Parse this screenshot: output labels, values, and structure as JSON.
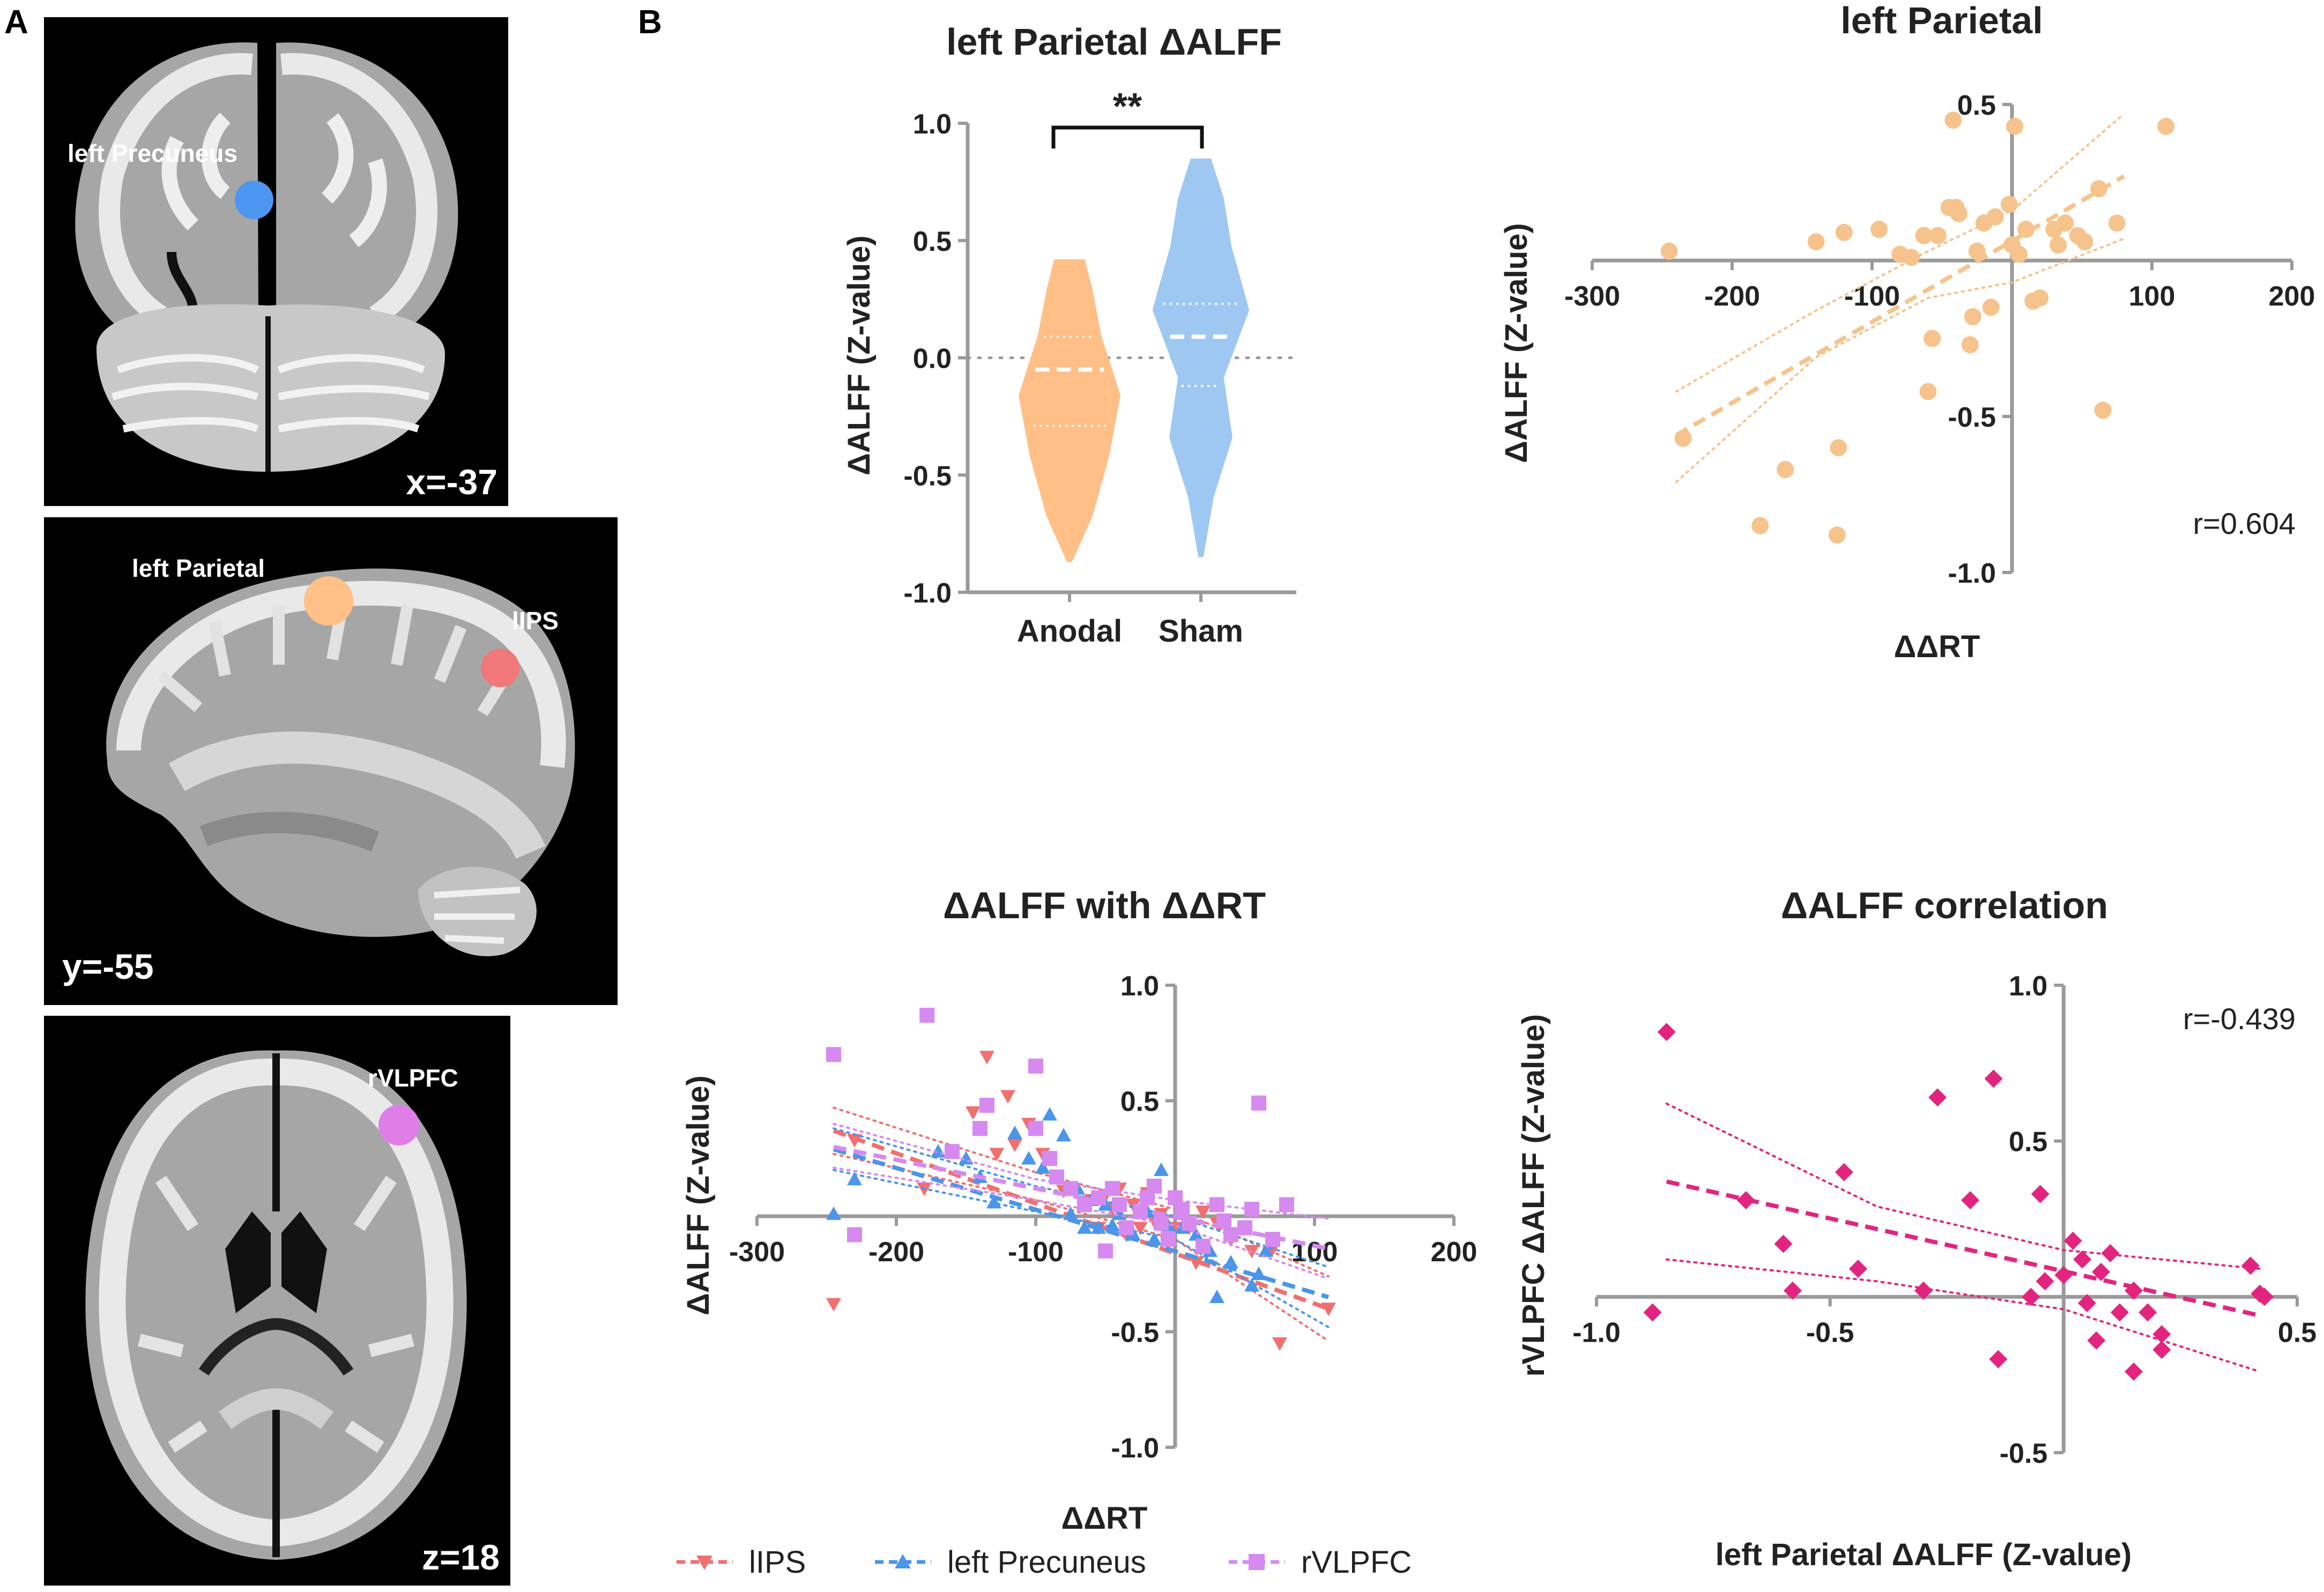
{
  "panel_labels": {
    "a": "A",
    "b": "B"
  },
  "brains": [
    {
      "coord_label": "x=-37",
      "rois": [
        {
          "label": "left Precuneus",
          "color": "#4c96f0"
        }
      ]
    },
    {
      "coord_label": "y=-55",
      "rois": [
        {
          "label": "left Parietal",
          "color": "#ffc187"
        },
        {
          "label": "lIPS",
          "color": "#f07878"
        }
      ]
    },
    {
      "coord_label": "z=18",
      "rois": [
        {
          "label": "rVLPFC",
          "color": "#e07ee8"
        }
      ]
    }
  ],
  "chart_data": [
    {
      "id": "violin",
      "type": "violin",
      "title": "left Parietal ΔALFF",
      "ylabel": "ΔALFF (Z-value)",
      "ylim": [
        -1.0,
        1.0
      ],
      "yticks": [
        "1.0",
        "0.5",
        "0.0",
        "-0.5",
        "-1.0"
      ],
      "significance": "**",
      "groups": [
        {
          "name": "Anodal",
          "color": "#ffbf86",
          "min": -0.87,
          "max": 0.42,
          "median": -0.05,
          "q1": -0.29,
          "q3": 0.09
        },
        {
          "name": "Sham",
          "color": "#9ec8f2",
          "min": -0.85,
          "max": 0.85,
          "median": 0.09,
          "q1": -0.12,
          "q3": 0.23
        }
      ]
    },
    {
      "id": "scatter_parietal",
      "type": "scatter",
      "title": "left Parietal",
      "xlabel": "ΔΔRT",
      "ylabel": "ΔALFF (Z-value)",
      "xlim": [
        -300,
        200
      ],
      "ylim": [
        -1.0,
        0.5
      ],
      "xticks": [
        "-300",
        "-200",
        "-100",
        "100",
        "200"
      ],
      "yticks": [
        "0.5",
        "-0.5",
        "-1.0"
      ],
      "annotation": "r=0.604",
      "color": "#f7c38c",
      "points": [
        [
          -245,
          0.03
        ],
        [
          -235,
          -0.57
        ],
        [
          -180,
          -0.85
        ],
        [
          -162,
          -0.67
        ],
        [
          -140,
          0.06
        ],
        [
          -125,
          -0.88
        ],
        [
          -124,
          -0.6
        ],
        [
          -120,
          0.09
        ],
        [
          -95,
          0.1
        ],
        [
          -80,
          0.02
        ],
        [
          -72,
          0.01
        ],
        [
          -63,
          0.08
        ],
        [
          -53,
          0.08
        ],
        [
          -60,
          -0.42
        ],
        [
          -57,
          -0.25
        ],
        [
          -45,
          0.17
        ],
        [
          -42,
          0.45
        ],
        [
          -40,
          0.17
        ],
        [
          -38,
          0.15
        ],
        [
          -30,
          -0.27
        ],
        [
          -28,
          -0.18
        ],
        [
          -25,
          0.03
        ],
        [
          -20,
          0.12
        ],
        [
          -15,
          -0.15
        ],
        [
          -12,
          0.14
        ],
        [
          -2,
          0.18
        ],
        [
          0,
          0.05
        ],
        [
          5,
          0.02
        ],
        [
          10,
          0.1
        ],
        [
          15,
          -0.13
        ],
        [
          20,
          -0.12
        ],
        [
          2,
          0.43
        ],
        [
          30,
          0.1
        ],
        [
          33,
          0.05
        ],
        [
          38,
          0.12
        ],
        [
          47,
          0.08
        ],
        [
          52,
          0.06
        ],
        [
          62,
          0.23
        ],
        [
          65,
          -0.48
        ],
        [
          75,
          0.12
        ],
        [
          110,
          0.43
        ]
      ],
      "fit": {
        "x": [
          -240,
          80
        ],
        "y": [
          -0.56,
          0.27
        ]
      },
      "ci": {
        "x": [
          -240,
          -140,
          -60,
          0,
          80
        ],
        "upper": [
          -0.42,
          -0.16,
          0.03,
          0.16,
          0.47
        ],
        "lower": [
          -0.71,
          -0.31,
          -0.12,
          -0.07,
          0.07
        ]
      }
    },
    {
      "id": "scatter_multi",
      "type": "scatter",
      "title": "ΔALFF with ΔΔRT",
      "xlabel": "ΔΔRT",
      "ylabel": "ΔALFF (Z-value)",
      "xlim": [
        -300,
        200
      ],
      "ylim": [
        -1.0,
        1.0
      ],
      "xticks": [
        "-300",
        "-200",
        "-100",
        "100",
        "200"
      ],
      "yticks": [
        "1.0",
        "0.5",
        "-0.5",
        "-1.0"
      ],
      "series": [
        {
          "name": "lIPS",
          "color": "#f26f6f",
          "marker": "triangle-down",
          "points": [
            [
              -245,
              -0.38
            ],
            [
              -230,
              0.33
            ],
            [
              -180,
              0.12
            ],
            [
              -145,
              0.45
            ],
            [
              -135,
              0.69
            ],
            [
              -128,
              0.27
            ],
            [
              -120,
              0.52
            ],
            [
              -115,
              0.31
            ],
            [
              -105,
              0.4
            ],
            [
              -95,
              0.27
            ],
            [
              -85,
              0.17
            ],
            [
              -80,
              0.11
            ],
            [
              -60,
              0.07
            ],
            [
              -55,
              -0.05
            ],
            [
              -50,
              0.09
            ],
            [
              -45,
              0.03
            ],
            [
              -40,
              0.12
            ],
            [
              -35,
              -0.08
            ],
            [
              -30,
              0.05
            ],
            [
              -25,
              -0.05
            ],
            [
              -20,
              0.1
            ],
            [
              -15,
              -0.02
            ],
            [
              -10,
              0.01
            ],
            [
              -5,
              -0.12
            ],
            [
              0,
              -0.05
            ],
            [
              5,
              0.02
            ],
            [
              10,
              -0.05
            ],
            [
              15,
              -0.2
            ],
            [
              20,
              0.02
            ],
            [
              30,
              -0.03
            ],
            [
              40,
              -0.1
            ],
            [
              55,
              -0.15
            ],
            [
              70,
              -0.14
            ],
            [
              75,
              -0.55
            ],
            [
              110,
              -0.4
            ]
          ],
          "fit": {
            "x": [
              -245,
              110
            ],
            "y": [
              0.37,
              -0.4
            ]
          },
          "ci": {
            "x": [
              -245,
              -100,
              0,
              110
            ],
            "upper": [
              0.47,
              0.19,
              0.03,
              -0.26
            ],
            "lower": [
              0.27,
              0.07,
              -0.1,
              -0.54
            ]
          }
        },
        {
          "name": "left Precuneus",
          "color": "#4b95ea",
          "marker": "triangle-up",
          "points": [
            [
              -245,
              0.01
            ],
            [
              -230,
              0.16
            ],
            [
              -170,
              0.28
            ],
            [
              -150,
              0.25
            ],
            [
              -140,
              0.17
            ],
            [
              -130,
              0.06
            ],
            [
              -115,
              0.36
            ],
            [
              -105,
              0.25
            ],
            [
              -95,
              0.21
            ],
            [
              -90,
              0.44
            ],
            [
              -80,
              0.35
            ],
            [
              -75,
              0.01
            ],
            [
              -70,
              0.12
            ],
            [
              -65,
              -0.05
            ],
            [
              -60,
              0.07
            ],
            [
              -55,
              -0.05
            ],
            [
              -50,
              0.05
            ],
            [
              -45,
              -0.04
            ],
            [
              -40,
              0.01
            ],
            [
              -30,
              -0.08
            ],
            [
              -25,
              0.03
            ],
            [
              -20,
              0.02
            ],
            [
              -15,
              -0.1
            ],
            [
              -10,
              0.2
            ],
            [
              -5,
              -0.04
            ],
            [
              5,
              -0.05
            ],
            [
              15,
              -0.08
            ],
            [
              25,
              -0.15
            ],
            [
              30,
              -0.35
            ],
            [
              40,
              -0.2
            ],
            [
              55,
              -0.3
            ],
            [
              60,
              -0.25
            ],
            [
              65,
              -0.15
            ]
          ],
          "fit": {
            "x": [
              -245,
              110
            ],
            "y": [
              0.29,
              -0.35
            ]
          },
          "ci": {
            "x": [
              -245,
              -100,
              0,
              110
            ],
            "upper": [
              0.38,
              0.13,
              0.0,
              -0.22
            ],
            "lower": [
              0.2,
              0.02,
              -0.1,
              -0.48
            ]
          }
        },
        {
          "name": "rVLPFC",
          "color": "#d68aef",
          "marker": "square",
          "points": [
            [
              -245,
              0.7
            ],
            [
              -230,
              -0.08
            ],
            [
              -178,
              0.87
            ],
            [
              -160,
              0.28
            ],
            [
              -140,
              0.38
            ],
            [
              -135,
              0.48
            ],
            [
              -100,
              0.38
            ],
            [
              -100,
              0.65
            ],
            [
              -90,
              0.25
            ],
            [
              -85,
              0.17
            ],
            [
              -75,
              0.12
            ],
            [
              -65,
              0.05
            ],
            [
              -55,
              0.08
            ],
            [
              -50,
              -0.15
            ],
            [
              -45,
              0.12
            ],
            [
              -40,
              0.05
            ],
            [
              -35,
              -0.05
            ],
            [
              -25,
              0.02
            ],
            [
              -20,
              0.08
            ],
            [
              -15,
              0.13
            ],
            [
              -10,
              -0.03
            ],
            [
              -5,
              -0.1
            ],
            [
              0,
              0.08
            ],
            [
              5,
              0.03
            ],
            [
              10,
              -0.03
            ],
            [
              20,
              -0.13
            ],
            [
              30,
              0.05
            ],
            [
              35,
              -0.02
            ],
            [
              40,
              -0.08
            ],
            [
              50,
              -0.05
            ],
            [
              55,
              0.03
            ],
            [
              60,
              0.49
            ],
            [
              70,
              -0.1
            ],
            [
              80,
              0.05
            ]
          ],
          "fit": {
            "x": [
              -245,
              110
            ],
            "y": [
              0.3,
              -0.14
            ]
          },
          "ci": {
            "x": [
              -245,
              -100,
              0,
              110
            ],
            "upper": [
              0.4,
              0.16,
              0.07,
              -0.01
            ],
            "lower": [
              0.21,
              0.07,
              -0.04,
              -0.27
            ]
          }
        }
      ]
    },
    {
      "id": "scatter_corr",
      "type": "scatter",
      "title": "ΔALFF  correlation",
      "xlabel": "left Parietal ΔALFF (Z-value)",
      "ylabel": "rVLPFC ΔALFF (Z-value)",
      "xlim": [
        -1.0,
        0.5
      ],
      "ylim": [
        -0.5,
        1.0
      ],
      "xticks": [
        "-1.0",
        "-0.5",
        "0.5"
      ],
      "yticks": [
        "1.0",
        "0.5",
        "-0.5"
      ],
      "annotation": "r=-0.439",
      "color": "#e3247f",
      "points": [
        [
          -0.88,
          -0.05
        ],
        [
          -0.85,
          0.85
        ],
        [
          -0.68,
          0.31
        ],
        [
          -0.6,
          0.17
        ],
        [
          -0.58,
          0.02
        ],
        [
          -0.47,
          0.4
        ],
        [
          -0.44,
          0.09
        ],
        [
          -0.3,
          0.02
        ],
        [
          -0.27,
          0.64
        ],
        [
          -0.2,
          0.31
        ],
        [
          -0.15,
          0.7
        ],
        [
          -0.14,
          -0.2
        ],
        [
          -0.07,
          0.0
        ],
        [
          -0.05,
          0.33
        ],
        [
          -0.04,
          0.05
        ],
        [
          0.0,
          0.07
        ],
        [
          0.02,
          0.18
        ],
        [
          0.04,
          0.12
        ],
        [
          0.05,
          -0.02
        ],
        [
          0.07,
          -0.14
        ],
        [
          0.08,
          0.08
        ],
        [
          0.1,
          0.14
        ],
        [
          0.12,
          -0.05
        ],
        [
          0.15,
          0.02
        ],
        [
          0.15,
          -0.24
        ],
        [
          0.18,
          -0.05
        ],
        [
          0.21,
          -0.12
        ],
        [
          0.21,
          -0.17
        ],
        [
          0.4,
          0.1
        ],
        [
          0.42,
          0.01
        ],
        [
          0.43,
          0.0
        ]
      ],
      "fit": {
        "x": [
          -0.85,
          0.42
        ],
        "y": [
          0.37,
          -0.06
        ]
      },
      "ci": {
        "x": [
          -0.85,
          -0.4,
          0.0,
          0.42
        ],
        "upper": [
          0.62,
          0.29,
          0.15,
          0.09
        ],
        "lower": [
          0.12,
          0.05,
          -0.04,
          -0.24
        ]
      }
    }
  ],
  "legend": [
    {
      "label": "lIPS",
      "color": "#f26f6f",
      "marker": "triangle-down"
    },
    {
      "label": "left Precuneus",
      "color": "#4b95ea",
      "marker": "triangle-up"
    },
    {
      "label": "rVLPFC",
      "color": "#d68aef",
      "marker": "square"
    }
  ]
}
